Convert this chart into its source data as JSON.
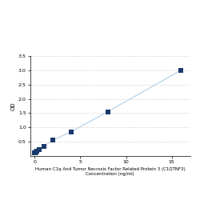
{
  "x": [
    0,
    0.0625,
    0.125,
    0.25,
    0.5,
    1,
    2,
    4,
    8,
    16
  ],
  "y": [
    0.1,
    0.12,
    0.14,
    0.17,
    0.23,
    0.35,
    0.55,
    0.85,
    1.55,
    3.0
  ],
  "line_color": "#b8d4e8",
  "marker_color": "#1a3a6b",
  "marker_size": 4,
  "marker_style": "s",
  "ylabel": "OD",
  "xlabel_line1": "Human C1q And Tumor Necrosis Factor Related Protein 3 (C1QTNF3)",
  "xlabel_line2": "Concentration (ng/ml)",
  "xlim": [
    -0.5,
    17
  ],
  "ylim": [
    0,
    3.5
  ],
  "yticks": [
    0.5,
    1.0,
    1.5,
    2.0,
    2.5,
    3.0,
    3.5
  ],
  "xticks": [
    0,
    5,
    10,
    15
  ],
  "grid_color": "#d8d8d8",
  "background_color": "#ffffff",
  "fig_background_color": "#ffffff",
  "xlabel_fontsize": 4.0,
  "ylabel_fontsize": 5.0,
  "tick_fontsize": 4.5,
  "linewidth": 0.9
}
